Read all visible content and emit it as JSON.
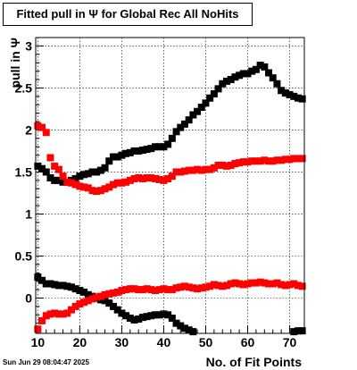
{
  "chart_data": {
    "type": "scatter",
    "title": "Fitted pull in  Ψ  for Global Rec All NoHits",
    "xlabel": "No. of Fit Points",
    "ylabel": "pull in  Ψ",
    "xlim": [
      9.5,
      73.5
    ],
    "ylim": [
      -0.42,
      3.1
    ],
    "x_ticks": [
      10,
      20,
      30,
      40,
      50,
      60,
      70
    ],
    "x_tick_labels": [
      "10",
      "20",
      "30",
      "40",
      "50",
      "60",
      "70"
    ],
    "y_ticks": [
      0,
      0.5,
      1,
      1.5,
      2,
      2.5,
      3
    ],
    "y_tick_labels": [
      "0",
      "0.5",
      "1",
      "1.5",
      "2",
      "2.5",
      "3"
    ],
    "grid": true,
    "datestamp": "Sun Jun 29 08:04:47 2025",
    "series": [
      {
        "color": "#000000",
        "x": [
          10,
          11,
          12,
          13,
          14,
          15,
          16,
          17,
          18,
          19,
          20,
          21,
          22,
          23,
          24,
          25,
          26,
          27,
          28,
          29,
          30,
          31,
          32,
          33,
          34,
          35,
          36,
          37,
          38,
          39,
          40,
          41,
          42,
          43,
          44,
          45,
          46,
          47,
          48,
          49,
          50,
          51,
          52,
          53,
          54,
          55,
          56,
          57,
          58,
          59,
          60,
          61,
          62,
          63,
          64,
          65,
          66,
          67,
          68,
          69,
          70,
          71,
          72,
          73
        ],
        "y": [
          1.57,
          1.54,
          1.5,
          1.43,
          1.4,
          1.4,
          1.38,
          1.38,
          1.4,
          1.42,
          1.45,
          1.47,
          1.48,
          1.5,
          1.5,
          1.52,
          1.55,
          1.63,
          1.68,
          1.68,
          1.7,
          1.72,
          1.73,
          1.75,
          1.75,
          1.76,
          1.77,
          1.78,
          1.8,
          1.8,
          1.8,
          1.83,
          1.9,
          1.98,
          2.03,
          2.07,
          2.12,
          2.18,
          2.22,
          2.27,
          2.32,
          2.38,
          2.43,
          2.49,
          2.55,
          2.58,
          2.6,
          2.63,
          2.65,
          2.67,
          2.67,
          2.7,
          2.72,
          2.77,
          2.75,
          2.68,
          2.62,
          2.55,
          2.47,
          2.44,
          2.42,
          2.4,
          2.38,
          2.37
        ]
      },
      {
        "color": "#000000",
        "x": [
          10,
          11,
          12,
          13,
          14,
          15,
          16,
          17,
          18,
          19,
          20,
          21,
          22,
          23,
          24,
          25,
          26,
          27,
          28,
          29,
          30,
          31,
          32,
          33,
          34,
          35,
          36,
          37,
          38,
          39,
          40,
          41,
          42,
          43,
          44,
          45,
          46,
          47,
          71,
          72,
          73
        ],
        "y": [
          0.25,
          0.21,
          0.17,
          0.17,
          0.16,
          0.15,
          0.15,
          0.14,
          0.13,
          0.11,
          0.09,
          0.07,
          0.04,
          0.02,
          0.0,
          -0.02,
          -0.03,
          -0.06,
          -0.1,
          -0.14,
          -0.18,
          -0.21,
          -0.24,
          -0.26,
          -0.25,
          -0.23,
          -0.22,
          -0.21,
          -0.2,
          -0.2,
          -0.19,
          -0.2,
          -0.24,
          -0.3,
          -0.33,
          -0.36,
          -0.38,
          -0.4,
          -0.4,
          -0.39,
          -0.39
        ]
      },
      {
        "color": "#ff0000",
        "x": [
          10,
          11,
          12,
          13,
          14,
          15,
          16,
          17,
          18,
          19,
          20,
          21,
          22,
          23,
          24,
          25,
          26,
          27,
          28,
          29,
          30,
          31,
          32,
          33,
          34,
          35,
          36,
          37,
          38,
          39,
          40,
          41,
          42,
          43,
          44,
          45,
          46,
          47,
          48,
          49,
          50,
          51,
          52,
          53,
          54,
          55,
          56,
          57,
          58,
          59,
          60,
          61,
          62,
          63,
          64,
          65,
          66,
          67,
          68,
          69,
          70,
          71,
          72,
          73
        ],
        "y": [
          2.05,
          2.03,
          1.97,
          1.67,
          1.57,
          1.53,
          1.45,
          1.38,
          1.37,
          1.35,
          1.33,
          1.32,
          1.31,
          1.28,
          1.27,
          1.28,
          1.3,
          1.32,
          1.35,
          1.37,
          1.37,
          1.38,
          1.4,
          1.42,
          1.43,
          1.42,
          1.43,
          1.43,
          1.42,
          1.41,
          1.4,
          1.42,
          1.45,
          1.5,
          1.5,
          1.51,
          1.52,
          1.52,
          1.53,
          1.52,
          1.53,
          1.53,
          1.55,
          1.58,
          1.58,
          1.57,
          1.58,
          1.6,
          1.61,
          1.62,
          1.62,
          1.63,
          1.63,
          1.63,
          1.64,
          1.63,
          1.63,
          1.64,
          1.64,
          1.65,
          1.65,
          1.66,
          1.66,
          1.66
        ]
      },
      {
        "color": "#ff0000",
        "x": [
          10,
          11,
          12,
          13,
          14,
          15,
          16,
          17,
          18,
          19,
          20,
          21,
          22,
          23,
          24,
          25,
          26,
          27,
          28,
          29,
          30,
          31,
          32,
          33,
          34,
          35,
          36,
          37,
          38,
          39,
          40,
          41,
          42,
          43,
          44,
          45,
          46,
          47,
          48,
          49,
          50,
          51,
          52,
          53,
          54,
          55,
          56,
          57,
          58,
          59,
          60,
          61,
          62,
          63,
          64,
          65,
          66,
          67,
          68,
          69,
          70,
          71,
          72,
          73
        ],
        "y": [
          -0.37,
          -0.27,
          -0.21,
          -0.19,
          -0.18,
          -0.19,
          -0.19,
          -0.18,
          -0.14,
          -0.1,
          -0.07,
          -0.05,
          -0.03,
          -0.01,
          0.01,
          0.02,
          0.04,
          0.05,
          0.06,
          0.07,
          0.09,
          0.1,
          0.11,
          0.11,
          0.1,
          0.1,
          0.11,
          0.1,
          0.09,
          0.1,
          0.11,
          0.1,
          0.1,
          0.12,
          0.13,
          0.14,
          0.13,
          0.12,
          0.11,
          0.12,
          0.13,
          0.14,
          0.16,
          0.15,
          0.14,
          0.15,
          0.17,
          0.18,
          0.17,
          0.16,
          0.17,
          0.18,
          0.18,
          0.19,
          0.18,
          0.17,
          0.17,
          0.18,
          0.16,
          0.15,
          0.16,
          0.17,
          0.15,
          0.14
        ]
      }
    ]
  }
}
